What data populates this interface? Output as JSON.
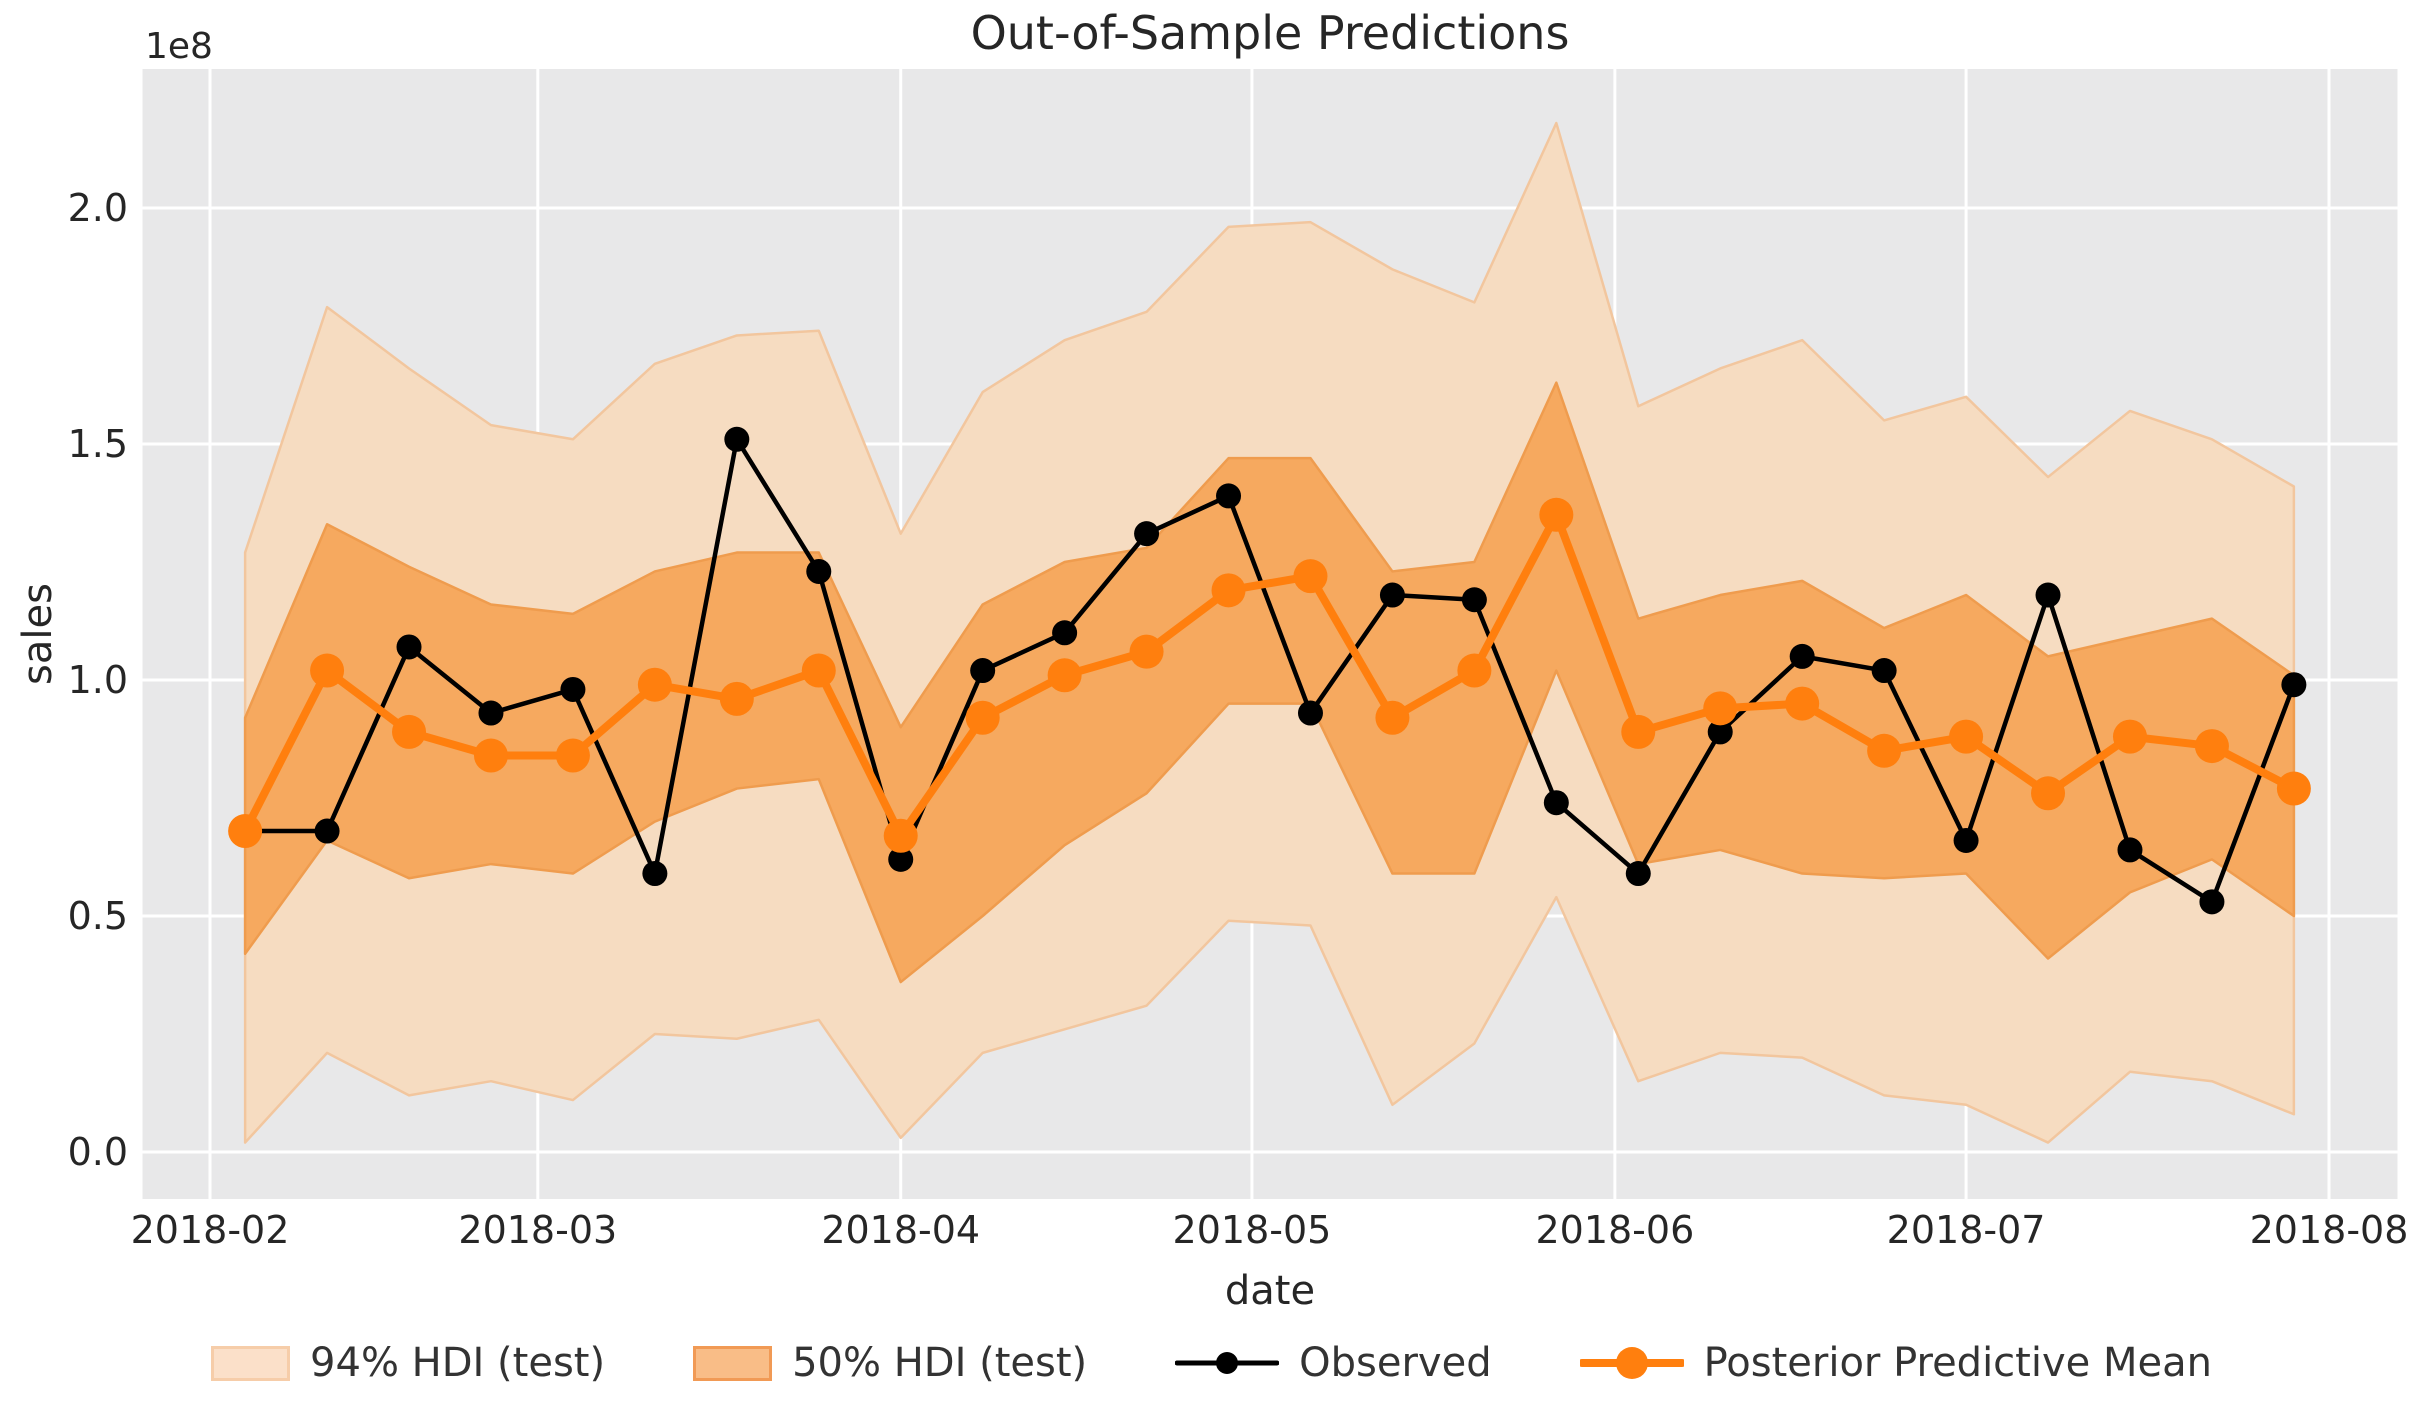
{
  "figure": {
    "title": "Out-of-Sample Predictions",
    "offset_text": "1e8",
    "xlabel": "date",
    "ylabel": "sales"
  },
  "legend": {
    "items": [
      {
        "label": "94% HDI (test)",
        "type": "patch",
        "fill": "#fbe0c9",
        "edge": "#f6cda9"
      },
      {
        "label": "50% HDI (test)",
        "type": "patch",
        "fill": "#f9bd87",
        "edge": "#f19a55"
      },
      {
        "label": "Observed",
        "type": "line",
        "color": "#000000",
        "line_width": 5,
        "marker_radius": 11
      },
      {
        "label": "Posterior Predictive Mean",
        "type": "line",
        "color": "#ff7f0e",
        "line_width": 8,
        "marker_radius": 16
      }
    ]
  },
  "chart_data": {
    "type": "line",
    "title": "Out-of-Sample Predictions",
    "xlabel": "date",
    "ylabel": "sales",
    "y_offset_label": "1e8",
    "values_unit": "1e8",
    "grid": true,
    "legend_position": "bottom",
    "plot_bg": "#e8e8e9",
    "grid_color": "#ffffff",
    "ylim": [
      -0.1,
      2.29
    ],
    "yticks": [
      {
        "label": "0.0",
        "value": 0.0
      },
      {
        "label": "0.5",
        "value": 0.5
      },
      {
        "label": "1.0",
        "value": 1.0
      },
      {
        "label": "1.5",
        "value": 1.5
      },
      {
        "label": "2.0",
        "value": 2.0
      }
    ],
    "xticks": [
      {
        "label": "2018-02",
        "day": 0
      },
      {
        "label": "2018-03",
        "day": 28
      },
      {
        "label": "2018-04",
        "day": 59
      },
      {
        "label": "2018-05",
        "day": 89
      },
      {
        "label": "2018-06",
        "day": 120
      },
      {
        "label": "2018-07",
        "day": 150
      },
      {
        "label": "2018-08",
        "day": 181
      }
    ],
    "x": [
      "2018-02-04",
      "2018-02-11",
      "2018-02-18",
      "2018-02-25",
      "2018-03-04",
      "2018-03-11",
      "2018-03-18",
      "2018-03-25",
      "2018-04-01",
      "2018-04-08",
      "2018-04-15",
      "2018-04-22",
      "2018-04-29",
      "2018-05-06",
      "2018-05-13",
      "2018-05-20",
      "2018-05-27",
      "2018-06-03",
      "2018-06-10",
      "2018-06-17",
      "2018-06-24",
      "2018-07-01",
      "2018-07-08",
      "2018-07-15",
      "2018-07-22",
      "2018-07-29"
    ],
    "x_day_offsets": [
      3,
      10,
      17,
      24,
      31,
      38,
      45,
      52,
      59,
      66,
      73,
      80,
      87,
      94,
      101,
      108,
      115,
      122,
      129,
      136,
      143,
      150,
      157,
      164,
      171,
      178
    ],
    "bands": [
      {
        "name": "94% HDI (test)",
        "fill": "#f6dcc1",
        "edge": "#f2c69e",
        "lower": [
          0.02,
          0.21,
          0.12,
          0.15,
          0.11,
          0.25,
          0.24,
          0.28,
          0.03,
          0.21,
          0.26,
          0.31,
          0.49,
          0.48,
          0.1,
          0.23,
          0.54,
          0.15,
          0.21,
          0.2,
          0.12,
          0.1,
          0.02,
          0.17,
          0.15,
          0.08
        ],
        "upper": [
          1.27,
          1.79,
          1.66,
          1.54,
          1.51,
          1.67,
          1.73,
          1.74,
          1.31,
          1.61,
          1.72,
          1.78,
          1.96,
          1.97,
          1.87,
          1.8,
          2.18,
          1.58,
          1.66,
          1.72,
          1.55,
          1.6,
          1.43,
          1.57,
          1.51,
          1.41
        ]
      },
      {
        "name": "50% HDI (test)",
        "fill": "#f6a95f",
        "edge": "#ef9c4e",
        "lower": [
          0.42,
          0.66,
          0.58,
          0.61,
          0.59,
          0.7,
          0.77,
          0.79,
          0.36,
          0.5,
          0.65,
          0.76,
          0.95,
          0.95,
          0.59,
          0.59,
          1.02,
          0.61,
          0.64,
          0.59,
          0.58,
          0.59,
          0.41,
          0.55,
          0.62,
          0.5
        ],
        "upper": [
          0.92,
          1.33,
          1.24,
          1.16,
          1.14,
          1.23,
          1.27,
          1.27,
          0.9,
          1.16,
          1.25,
          1.28,
          1.47,
          1.47,
          1.23,
          1.25,
          1.63,
          1.13,
          1.18,
          1.21,
          1.11,
          1.18,
          1.05,
          1.09,
          1.13,
          1.01
        ]
      }
    ],
    "series": [
      {
        "name": "Observed",
        "color": "#000000",
        "line_width": 4.5,
        "marker_radius": 12.5,
        "values": [
          0.68,
          0.68,
          1.07,
          0.93,
          0.98,
          0.59,
          1.51,
          1.23,
          0.62,
          1.02,
          1.1,
          1.31,
          1.39,
          0.93,
          1.18,
          1.17,
          0.74,
          0.59,
          0.89,
          1.05,
          1.02,
          0.66,
          1.18,
          0.64,
          0.53,
          0.99
        ]
      },
      {
        "name": "Posterior Predictive Mean",
        "color": "#ff7f0e",
        "line_width": 8,
        "marker_radius": 17,
        "values": [
          0.68,
          1.02,
          0.89,
          0.84,
          0.84,
          0.99,
          0.96,
          1.02,
          0.67,
          0.92,
          1.01,
          1.06,
          1.19,
          1.22,
          0.92,
          1.02,
          1.35,
          0.89,
          0.94,
          0.95,
          0.85,
          0.88,
          0.76,
          0.88,
          0.86,
          0.77
        ]
      }
    ]
  }
}
